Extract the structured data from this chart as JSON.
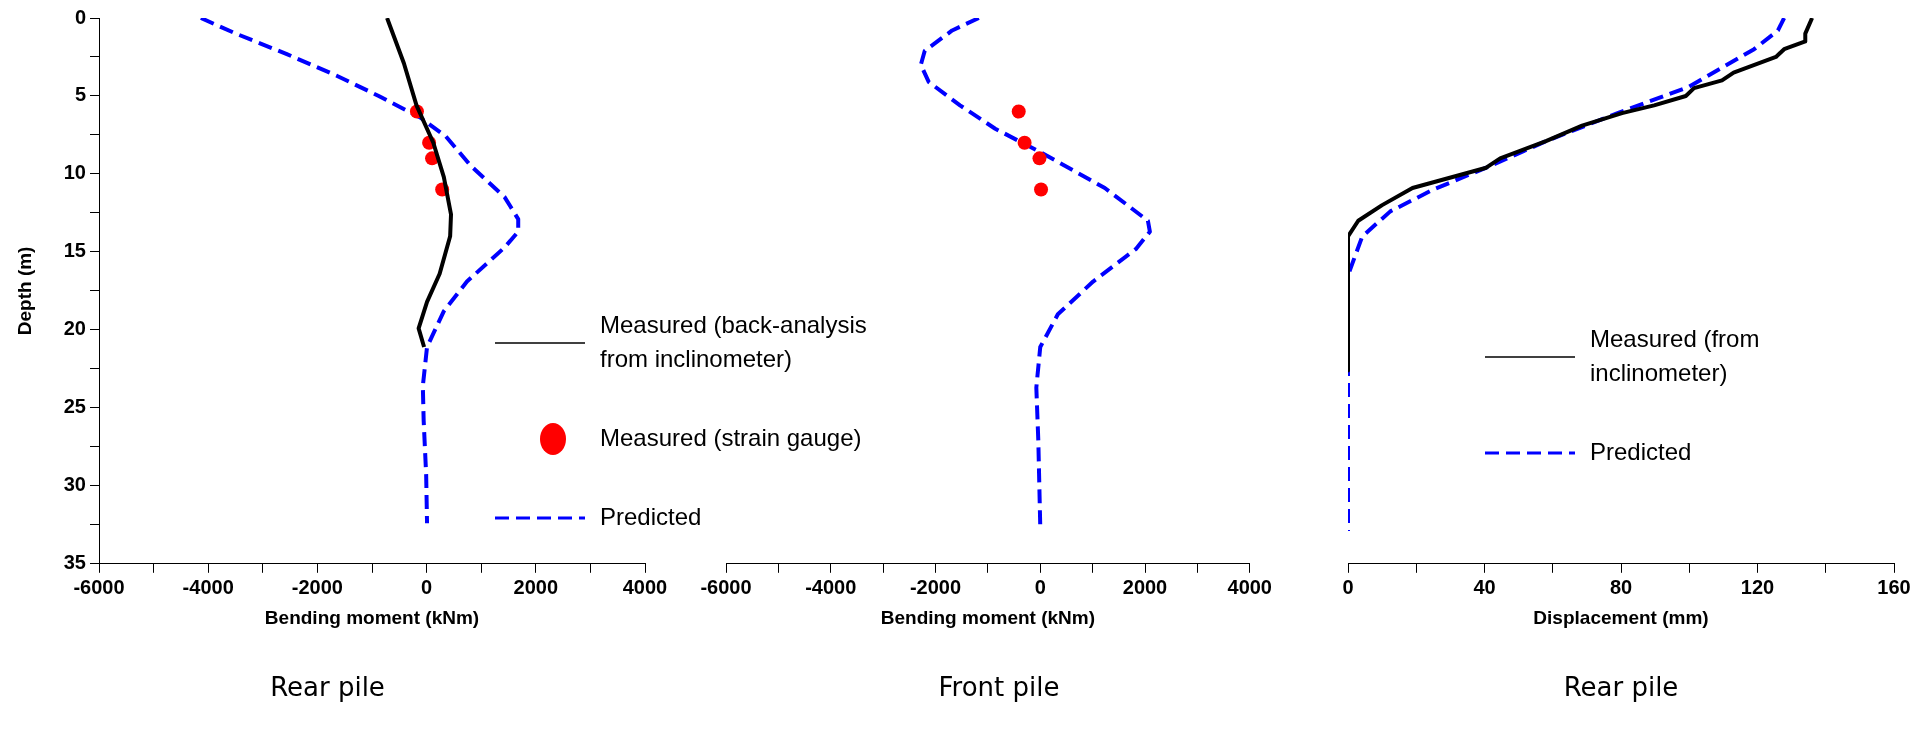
{
  "chart_data": [
    {
      "type": "line",
      "title": "Rear pile",
      "xlabel": "Bending moment (kNm)",
      "ylabel": "Depth (m)",
      "xlim": [
        -6000,
        4000
      ],
      "xticks": [
        -6000,
        {
          "value": -5000,
          "label": null
        },
        -4000,
        {
          "value": -3000,
          "label": null
        },
        -2000,
        {
          "value": -1000,
          "label": null
        },
        0,
        {
          "value": 1000,
          "label": null
        },
        2000,
        {
          "value": 3000,
          "label": null
        },
        4000
      ],
      "ylim": [
        35,
        0
      ],
      "yticks": [
        0,
        {
          "value": 2.5,
          "label": null
        },
        5,
        {
          "value": 7.5,
          "label": null
        },
        10,
        {
          "value": 12.5,
          "label": null
        },
        15,
        {
          "value": 17.5,
          "label": null
        },
        20,
        {
          "value": 22.5,
          "label": null
        },
        25,
        {
          "value": 27.5,
          "label": null
        },
        30,
        {
          "value": 32.5,
          "label": null
        },
        35
      ],
      "grid": false,
      "legend": "right",
      "series": [
        {
          "name": "Measured (back-analysis from inclinometer)",
          "color": "#000000",
          "line_style": "solid",
          "marker": "none",
          "x": [
            -724,
            -416,
            -185,
            123,
            316,
            447,
            431,
            239,
            8,
            -146,
            -46
          ],
          "values": [
            0,
            2.9,
            5.6,
            8,
            10.2,
            12.6,
            14,
            16.4,
            18.2,
            19.9,
            21.1
          ]
        },
        {
          "name": "Measured (strain gauge)",
          "type": "scatter",
          "color": "#ff0000",
          "marker": "circle",
          "x": [
            -177,
            46,
            100,
            285
          ],
          "values": [
            6,
            8,
            9,
            11
          ]
        },
        {
          "name": "Predicted",
          "color": "#0000ff",
          "line_style": "dashed",
          "marker": "none",
          "x": [
            -4134,
            -3495,
            -2571,
            -1647,
            -877,
            -108,
            354,
            816,
            1432,
            1678,
            1678,
            1432,
            739,
            316,
            8,
            -69,
            -54,
            -8,
            8
          ],
          "values": [
            0,
            1,
            2.3,
            3.7,
            5,
            6.4,
            7.6,
            9.5,
            11.5,
            12.9,
            13.7,
            14.7,
            16.9,
            18.8,
            21.1,
            23.6,
            25.8,
            29.3,
            32.4
          ]
        }
      ]
    },
    {
      "type": "line",
      "title": "Front pile",
      "xlabel": "Bending moment (kNm)",
      "xlim": [
        -6000,
        4000
      ],
      "xticks": [
        -6000,
        {
          "value": -5000,
          "label": null
        },
        -4000,
        {
          "value": -3000,
          "label": null
        },
        -2000,
        {
          "value": -1000,
          "label": null
        },
        0,
        {
          "value": 1000,
          "label": null
        },
        2000,
        {
          "value": 3000,
          "label": null
        },
        4000
      ],
      "ylim": [
        35,
        0
      ],
      "tick_labels": "x",
      "grid": false,
      "series": [
        {
          "type": "scatter",
          "color": "#ff0000",
          "marker": "circle",
          "x": [
            -411,
            -299,
            -15,
            15
          ],
          "values": [
            6,
            8,
            9,
            11
          ]
        },
        {
          "color": "#0000ff",
          "line_style": "dashed",
          "marker": "none",
          "x": [
            -1173,
            -1682,
            -2205,
            -2280,
            -2130,
            -1532,
            -860,
            0,
            1233,
            2055,
            2093,
            1831,
            1009,
            336,
            0,
            -75,
            -37,
            0
          ],
          "values": [
            0,
            0.8,
            2.1,
            3,
            4.1,
            5.6,
            7.1,
            8.6,
            10.9,
            13,
            13.7,
            14.8,
            16.9,
            19,
            21.1,
            23.7,
            27.1,
            32.6
          ]
        }
      ]
    },
    {
      "type": "line",
      "title": "Rear pile",
      "xlabel": "Displacement (mm)",
      "xlim": [
        0,
        160
      ],
      "xticks": [
        0,
        {
          "value": 20,
          "label": null
        },
        40,
        {
          "value": 60,
          "label": null
        },
        80,
        {
          "value": 100,
          "label": null
        },
        120,
        {
          "value": 140,
          "label": null
        },
        160
      ],
      "ylim": [
        35,
        0
      ],
      "tick_labels": "x",
      "grid": false,
      "legend": "right",
      "series": [
        {
          "name": "Measured (from inclinometer)",
          "color": "#000000",
          "line_style": "solid",
          "marker": "none",
          "x": [
            136,
            134,
            134,
            127.8,
            125.4,
            113,
            109.6,
            101.4,
            99,
            89.7,
            80.3,
            68.6,
            58,
            44.6,
            40.5,
            18.9,
            10,
            3,
            0,
            0,
            0,
            0,
            0,
            0,
            0
          ],
          "values": [
            0,
            1,
            1.5,
            2,
            2.5,
            3.5,
            4,
            4.5,
            5,
            5.6,
            6.1,
            6.9,
            7.9,
            9,
            9.6,
            10.9,
            12,
            13,
            14,
            15.5,
            16.8,
            18,
            19.1,
            19.6,
            22.6
          ]
        },
        {
          "name": "Predicted",
          "color": "#0000ff",
          "line_style": "dashed",
          "marker": "none",
          "x": [
            127.8,
            126,
            119,
            100,
            79,
            58,
            40.5,
            25,
            12.4,
            4.2,
            0,
            0,
            0,
            0
          ],
          "values": [
            0,
            0.8,
            2,
            4.4,
            6.1,
            7.9,
            9.6,
            11,
            12.4,
            14,
            16.5,
            18.8,
            21.9,
            32.9
          ]
        }
      ]
    }
  ]
}
